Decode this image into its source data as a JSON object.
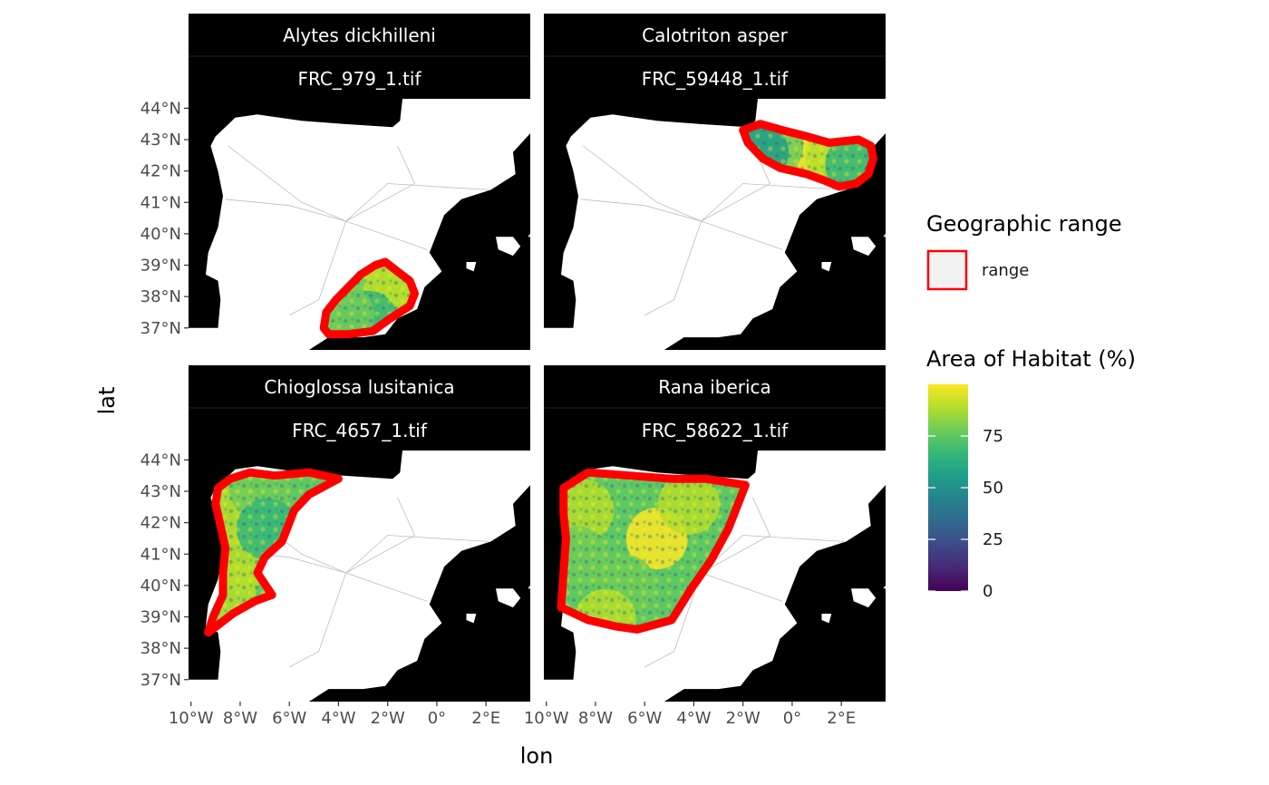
{
  "panels": [
    {
      "species": "Alytes dickhilleni",
      "file": "FRC_979_1.tif",
      "range": [
        [
          -4.6,
          37.0
        ],
        [
          -4.4,
          36.8
        ],
        [
          -3.6,
          36.8
        ],
        [
          -2.6,
          36.9
        ],
        [
          -1.9,
          37.3
        ],
        [
          -1.1,
          37.7
        ],
        [
          -0.9,
          38.1
        ],
        [
          -1.1,
          38.5
        ],
        [
          -1.6,
          38.8
        ],
        [
          -2.1,
          39.1
        ],
        [
          -2.5,
          39.0
        ],
        [
          -3.1,
          38.7
        ],
        [
          -3.6,
          38.3
        ],
        [
          -4.1,
          37.9
        ],
        [
          -4.5,
          37.5
        ]
      ],
      "hotspots": [
        [
          -2.4,
          38.2,
          90
        ],
        [
          -3.2,
          37.6,
          75
        ],
        [
          -1.7,
          38.4,
          85
        ],
        [
          -2.8,
          37.2,
          70
        ],
        [
          -3.8,
          37.4,
          80
        ]
      ]
    },
    {
      "species": "Calotriton asper",
      "file": "FRC_59448_1.tif",
      "range": [
        [
          -2.0,
          43.3
        ],
        [
          -1.3,
          43.5
        ],
        [
          -0.4,
          43.3
        ],
        [
          0.6,
          43.1
        ],
        [
          1.5,
          42.9
        ],
        [
          2.7,
          43.0
        ],
        [
          3.2,
          42.8
        ],
        [
          3.3,
          42.4
        ],
        [
          3.1,
          41.9
        ],
        [
          2.6,
          41.6
        ],
        [
          1.9,
          41.5
        ],
        [
          1.3,
          41.7
        ],
        [
          0.6,
          41.9
        ],
        [
          -0.5,
          42.1
        ],
        [
          -1.2,
          42.4
        ],
        [
          -1.8,
          42.9
        ]
      ],
      "hotspots": [
        [
          0.2,
          42.6,
          95
        ],
        [
          1.8,
          42.4,
          90
        ],
        [
          -0.8,
          42.8,
          80
        ],
        [
          2.6,
          42.2,
          70
        ],
        [
          -1.4,
          42.6,
          60
        ]
      ]
    },
    {
      "species": "Chioglossa lusitanica",
      "file": "FRC_4657_1.tif",
      "range": [
        [
          -8.9,
          43.1
        ],
        [
          -8.4,
          43.4
        ],
        [
          -7.6,
          43.6
        ],
        [
          -6.6,
          43.5
        ],
        [
          -5.2,
          43.6
        ],
        [
          -4.0,
          43.4
        ],
        [
          -5.2,
          42.9
        ],
        [
          -5.8,
          42.4
        ],
        [
          -6.3,
          41.4
        ],
        [
          -7.0,
          40.9
        ],
        [
          -7.3,
          40.4
        ],
        [
          -6.7,
          39.7
        ],
        [
          -7.4,
          39.5
        ],
        [
          -8.3,
          39.1
        ],
        [
          -8.8,
          38.8
        ],
        [
          -9.3,
          38.5
        ],
        [
          -9.1,
          39.0
        ],
        [
          -8.7,
          39.7
        ],
        [
          -8.7,
          40.4
        ],
        [
          -8.6,
          41.2
        ],
        [
          -8.8,
          41.9
        ],
        [
          -9.0,
          42.6
        ]
      ],
      "hotspots": [
        [
          -8.3,
          42.3,
          92
        ],
        [
          -8.0,
          40.8,
          88
        ],
        [
          -7.2,
          43.1,
          80
        ],
        [
          -8.6,
          39.9,
          85
        ],
        [
          -6.9,
          41.8,
          70
        ]
      ]
    },
    {
      "species": "Rana iberica",
      "file": "FRC_58622_1.tif",
      "range": [
        [
          -9.3,
          43.1
        ],
        [
          -8.3,
          43.6
        ],
        [
          -6.6,
          43.5
        ],
        [
          -4.9,
          43.4
        ],
        [
          -3.5,
          43.4
        ],
        [
          -1.9,
          43.2
        ],
        [
          -2.2,
          42.6
        ],
        [
          -2.6,
          41.8
        ],
        [
          -3.3,
          40.8
        ],
        [
          -4.1,
          39.9
        ],
        [
          -4.5,
          39.4
        ],
        [
          -4.9,
          38.9
        ],
        [
          -6.3,
          38.6
        ],
        [
          -7.2,
          38.7
        ],
        [
          -8.3,
          38.9
        ],
        [
          -9.4,
          39.3
        ],
        [
          -9.3,
          40.4
        ],
        [
          -9.2,
          41.5
        ],
        [
          -9.3,
          42.3
        ]
      ],
      "hotspots": [
        [
          -5.5,
          41.5,
          98
        ],
        [
          -8.5,
          42.4,
          90
        ],
        [
          -6.8,
          40.0,
          75
        ],
        [
          -4.2,
          42.6,
          85
        ],
        [
          -7.6,
          38.9,
          88
        ],
        [
          -8.7,
          40.9,
          80
        ]
      ]
    }
  ],
  "x_axis": {
    "title": "lon",
    "ticks": [
      {
        "value": -10,
        "label": "10°W"
      },
      {
        "value": -8,
        "label": "8°W"
      },
      {
        "value": -6,
        "label": "6°W"
      },
      {
        "value": -4,
        "label": "4°W"
      },
      {
        "value": -2,
        "label": "2°W"
      },
      {
        "value": 0,
        "label": "0°"
      },
      {
        "value": 2,
        "label": "2°E"
      }
    ]
  },
  "y_axis": {
    "title": "lat",
    "ticks": [
      {
        "value": 44,
        "label": "44°N"
      },
      {
        "value": 43,
        "label": "43°N"
      },
      {
        "value": 42,
        "label": "42°N"
      },
      {
        "value": 41,
        "label": "41°N"
      },
      {
        "value": 40,
        "label": "40°N"
      },
      {
        "value": 39,
        "label": "39°N"
      },
      {
        "value": 38,
        "label": "38°N"
      },
      {
        "value": 37,
        "label": "37°N"
      }
    ]
  },
  "map_extent": {
    "lon": [
      -10.1,
      3.8
    ],
    "lat": [
      36.3,
      44.3
    ]
  },
  "legend": {
    "range_title": "Geographic range",
    "range_label": "range",
    "habitat_title": "Area of Habitat (%)",
    "colorbar_limits": [
      0,
      100
    ],
    "colorbar_ticks": [
      0,
      25,
      50,
      75
    ],
    "range_color": "#ff0000",
    "range_fill": "#f2f2f2"
  },
  "colors": {
    "strip_bg": "#000000",
    "sea": "#000000",
    "land": "#ffffff",
    "viridis": [
      "#440154",
      "#482878",
      "#3e4a89",
      "#31688e",
      "#26828e",
      "#1f9e89",
      "#35b779",
      "#6dcd59",
      "#b4de2c",
      "#fde725"
    ]
  },
  "iberia_coast": [
    [
      -9.0,
      43.1
    ],
    [
      -8.2,
      43.7
    ],
    [
      -7.3,
      43.8
    ],
    [
      -5.5,
      43.6
    ],
    [
      -3.8,
      43.5
    ],
    [
      -1.8,
      43.4
    ],
    [
      -1.5,
      43.6
    ],
    [
      -1.4,
      44.3
    ],
    [
      0.9,
      44.3
    ],
    [
      1.4,
      44.3
    ],
    [
      3.8,
      44.3
    ],
    [
      3.8,
      43.2
    ],
    [
      3.1,
      42.6
    ],
    [
      3.2,
      41.9
    ],
    [
      2.2,
      41.4
    ],
    [
      1.0,
      41.1
    ],
    [
      0.3,
      40.6
    ],
    [
      0.0,
      40.0
    ],
    [
      -0.3,
      39.4
    ],
    [
      0.2,
      38.8
    ],
    [
      -0.5,
      38.3
    ],
    [
      -0.8,
      37.6
    ],
    [
      -1.6,
      37.3
    ],
    [
      -2.1,
      36.8
    ],
    [
      -3.0,
      36.7
    ],
    [
      -4.4,
      36.7
    ],
    [
      -5.2,
      36.3
    ],
    [
      -10.1,
      36.3
    ],
    [
      -10.1,
      37.0
    ],
    [
      -8.9,
      37.0
    ],
    [
      -8.8,
      37.9
    ],
    [
      -8.9,
      38.5
    ],
    [
      -9.4,
      38.7
    ],
    [
      -9.3,
      39.4
    ],
    [
      -8.9,
      40.2
    ],
    [
      -8.7,
      41.2
    ],
    [
      -8.9,
      42.0
    ],
    [
      -9.2,
      42.8
    ]
  ],
  "islands": [
    [
      [
        2.4,
        39.9
      ],
      [
        3.1,
        39.9
      ],
      [
        3.4,
        39.6
      ],
      [
        3.1,
        39.3
      ],
      [
        2.5,
        39.5
      ]
    ],
    [
      [
        1.2,
        39.1
      ],
      [
        1.6,
        39.1
      ],
      [
        1.5,
        38.8
      ],
      [
        1.2,
        38.9
      ]
    ],
    [
      [
        3.8,
        40.0
      ],
      [
        3.8,
        39.9
      ],
      [
        3.7,
        39.9
      ]
    ]
  ]
}
